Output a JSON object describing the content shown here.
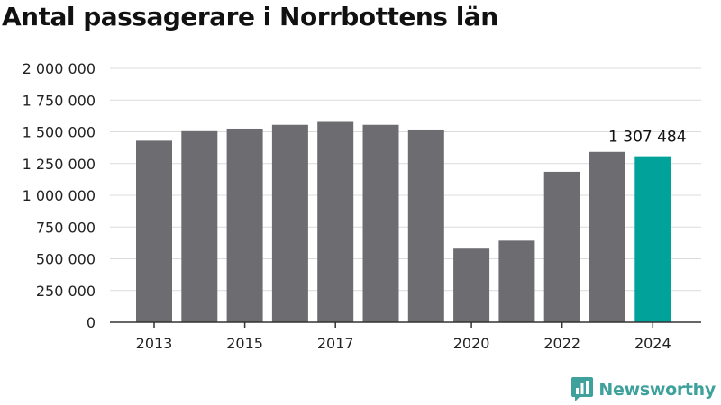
{
  "title": "Antal passagerare i Norrbottens län",
  "brand": {
    "name": "Newsworthy",
    "icon": "newsworthy-logo-icon"
  },
  "colors": {
    "bar": "#6d6c70",
    "highlight": "#00a29a",
    "grid": "#dcdcdc",
    "axis": "#333333",
    "brand": "#3fa19c"
  },
  "chart_data": {
    "type": "bar",
    "title": "Antal passagerare i Norrbottens län",
    "xlabel": "",
    "ylabel": "",
    "categories": [
      "2013",
      "2014",
      "2015",
      "2016",
      "2017",
      "2018",
      "2019",
      "2020",
      "2021",
      "2022",
      "2023",
      "2024"
    ],
    "values": [
      1430000,
      1505000,
      1525000,
      1555000,
      1578000,
      1555000,
      1518000,
      580000,
      643000,
      1185000,
      1342000,
      1307484
    ],
    "highlight_index": 11,
    "highlight_label": "1 307 484",
    "ylim": [
      0,
      2000000
    ],
    "y_ticks": [
      {
        "value": 0,
        "label": "0"
      },
      {
        "value": 250000,
        "label": "250 000"
      },
      {
        "value": 500000,
        "label": "500 000"
      },
      {
        "value": 750000,
        "label": "750 000"
      },
      {
        "value": 1000000,
        "label": "1 000 000"
      },
      {
        "value": 1250000,
        "label": "1 250 000"
      },
      {
        "value": 1500000,
        "label": "1 500 000"
      },
      {
        "value": 1750000,
        "label": "1 750 000"
      },
      {
        "value": 2000000,
        "label": "2 000 000"
      }
    ],
    "x_tick_labels": [
      "2013",
      "2015",
      "2017",
      "2020",
      "2022",
      "2024"
    ],
    "grid": true,
    "legend": "none"
  }
}
